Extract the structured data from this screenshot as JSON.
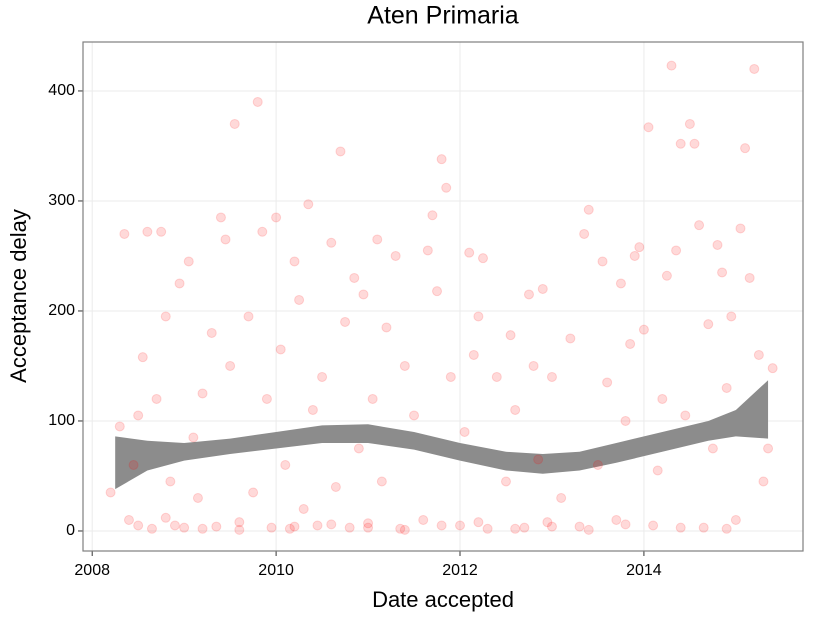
{
  "chart_data": {
    "type": "scatter",
    "title": "Aten Primaria",
    "xlabel": "Date accepted",
    "ylabel": "Acceptance delay",
    "x": [
      2008.2,
      2008.3,
      2008.35,
      2008.4,
      2008.45,
      2008.5,
      2008.55,
      2008.6,
      2008.65,
      2008.7,
      2008.75,
      2008.8,
      2008.85,
      2008.9,
      2008.95,
      2009.0,
      2009.05,
      2009.1,
      2009.15,
      2009.2,
      2009.3,
      2009.35,
      2009.4,
      2009.45,
      2009.5,
      2009.55,
      2009.6,
      2009.7,
      2009.75,
      2009.8,
      2009.85,
      2009.9,
      2009.95,
      2010.0,
      2010.05,
      2010.1,
      2010.15,
      2010.2,
      2010.25,
      2010.3,
      2010.35,
      2010.4,
      2010.45,
      2010.5,
      2010.6,
      2010.65,
      2010.7,
      2010.75,
      2010.8,
      2010.85,
      2010.9,
      2010.95,
      2011.0,
      2011.05,
      2011.1,
      2011.15,
      2011.2,
      2011.3,
      2011.35,
      2011.4,
      2011.5,
      2011.6,
      2011.65,
      2011.7,
      2011.75,
      2011.8,
      2011.85,
      2011.9,
      2012.0,
      2012.05,
      2012.1,
      2012.15,
      2012.2,
      2012.25,
      2012.3,
      2012.4,
      2012.5,
      2012.55,
      2012.6,
      2012.7,
      2012.75,
      2012.8,
      2012.85,
      2012.9,
      2012.95,
      2013.0,
      2013.1,
      2013.2,
      2013.3,
      2013.35,
      2013.4,
      2013.5,
      2013.55,
      2013.6,
      2013.7,
      2013.75,
      2013.8,
      2013.85,
      2013.9,
      2013.95,
      2014.0,
      2014.05,
      2014.1,
      2014.15,
      2014.2,
      2014.25,
      2014.3,
      2014.35,
      2014.4,
      2014.45,
      2014.5,
      2014.55,
      2014.6,
      2014.65,
      2014.7,
      2014.75,
      2014.8,
      2014.85,
      2014.9,
      2014.95,
      2015.0,
      2015.05,
      2015.1,
      2015.15,
      2015.2,
      2015.25,
      2015.3,
      2015.35,
      2015.4,
      2008.5,
      2008.8,
      2009.2,
      2009.6,
      2010.2,
      2010.6,
      2011.0,
      2011.4,
      2011.8,
      2012.2,
      2012.6,
      2013.0,
      2013.4,
      2013.8,
      2014.4,
      2014.9
    ],
    "values": [
      35,
      95,
      270,
      10,
      60,
      105,
      158,
      272,
      2,
      120,
      272,
      195,
      45,
      5,
      225,
      3,
      245,
      85,
      30,
      125,
      180,
      4,
      285,
      265,
      150,
      370,
      8,
      195,
      35,
      390,
      272,
      120,
      3,
      285,
      165,
      60,
      2,
      245,
      210,
      20,
      297,
      110,
      5,
      140,
      262,
      40,
      345,
      190,
      3,
      230,
      75,
      215,
      7,
      120,
      265,
      45,
      185,
      250,
      2,
      150,
      105,
      10,
      255,
      287,
      218,
      338,
      312,
      140,
      5,
      90,
      253,
      160,
      195,
      248,
      2,
      140,
      45,
      178,
      110,
      3,
      215,
      150,
      65,
      220,
      8,
      140,
      30,
      175,
      4,
      270,
      292,
      60,
      245,
      135,
      10,
      225,
      100,
      170,
      250,
      258,
      183,
      367,
      5,
      55,
      120,
      232,
      423,
      255,
      352,
      105,
      370,
      352,
      278,
      3,
      188,
      75,
      260,
      235,
      130,
      195,
      10,
      275,
      348,
      230,
      420,
      160,
      45,
      75,
      148,
      5,
      12,
      2,
      1,
      4,
      6,
      3,
      1,
      5,
      8,
      2,
      4,
      1,
      6,
      3,
      2
    ],
    "color": "#ff0000",
    "opacity": 0.15,
    "ribbon": {
      "color": "#8c8c8c",
      "x": [
        2008.25,
        2008.6,
        2009.0,
        2009.5,
        2010.0,
        2010.5,
        2011.0,
        2011.5,
        2012.0,
        2012.5,
        2012.9,
        2013.3,
        2013.7,
        2014.2,
        2014.7,
        2015.0,
        2015.35
      ],
      "lower": [
        38,
        55,
        64,
        70,
        75,
        80,
        80,
        74,
        64,
        55,
        52,
        55,
        62,
        72,
        82,
        86,
        84
      ],
      "upper": [
        86,
        82,
        80,
        84,
        90,
        96,
        97,
        90,
        80,
        72,
        70,
        72,
        80,
        90,
        100,
        110,
        137
      ]
    },
    "xlim": [
      2007.9,
      2015.73
    ],
    "xticks": [
      2008,
      2010,
      2012,
      2014
    ],
    "ylim": [
      -18.2,
      444.5
    ],
    "yticks": [
      0,
      100,
      200,
      300,
      400
    ],
    "grid": true
  }
}
